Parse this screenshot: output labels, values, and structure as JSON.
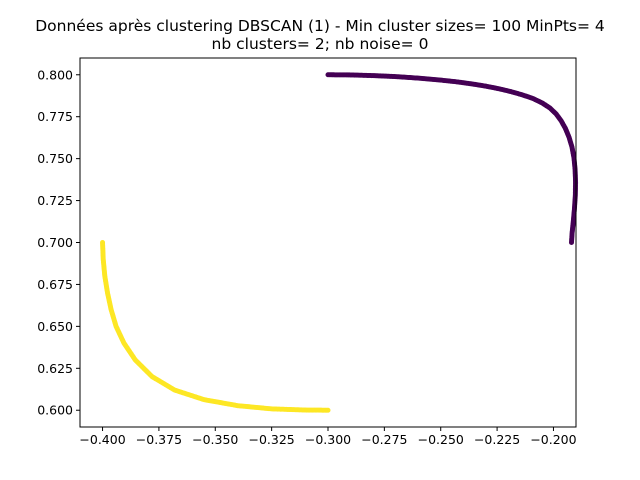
{
  "chart_data": {
    "type": "scatter",
    "title": "Données après clustering DBSCAN (1) - Min cluster sizes= 100 MinPts= 4",
    "subtitle": "nb clusters= 2; nb noise= 0",
    "xlabel": "",
    "ylabel": "",
    "xlim": [
      -0.41,
      -0.19
    ],
    "ylim": [
      0.59,
      0.81
    ],
    "x_ticks": [
      -0.4,
      -0.375,
      -0.35,
      -0.325,
      -0.3,
      -0.275,
      -0.25,
      -0.225,
      -0.2
    ],
    "x_tick_labels": [
      "−0.400",
      "−0.375",
      "−0.350",
      "−0.325",
      "−0.300",
      "−0.275",
      "−0.250",
      "−0.225",
      "−0.200"
    ],
    "y_ticks": [
      0.6,
      0.625,
      0.65,
      0.675,
      0.7,
      0.725,
      0.75,
      0.775,
      0.8
    ],
    "y_tick_labels": [
      "0.600",
      "0.625",
      "0.650",
      "0.675",
      "0.700",
      "0.725",
      "0.750",
      "0.775",
      "0.800"
    ],
    "grid": false,
    "legend": false,
    "series": [
      {
        "cluster": 0,
        "color": "#440154",
        "points": [
          [
            -0.3,
            0.8
          ],
          [
            -0.29,
            0.7999
          ],
          [
            -0.28,
            0.7995
          ],
          [
            -0.27,
            0.7989
          ],
          [
            -0.26,
            0.798
          ],
          [
            -0.25,
            0.7968
          ],
          [
            -0.243,
            0.7958
          ],
          [
            -0.236,
            0.7945
          ],
          [
            -0.23,
            0.7932
          ],
          [
            -0.224,
            0.7916
          ],
          [
            -0.219,
            0.79
          ],
          [
            -0.214,
            0.7881
          ],
          [
            -0.209,
            0.7858
          ],
          [
            -0.205,
            0.7832
          ],
          [
            -0.2015,
            0.7801
          ],
          [
            -0.1988,
            0.7766
          ],
          [
            -0.1966,
            0.7726
          ],
          [
            -0.1947,
            0.768
          ],
          [
            -0.1931,
            0.7628
          ],
          [
            -0.1918,
            0.757
          ],
          [
            -0.1909,
            0.7505
          ],
          [
            -0.1904,
            0.7435
          ],
          [
            -0.1902,
            0.736
          ],
          [
            -0.1903,
            0.728
          ],
          [
            -0.1907,
            0.72
          ],
          [
            -0.1912,
            0.7125
          ],
          [
            -0.1917,
            0.706
          ],
          [
            -0.192,
            0.7
          ]
        ]
      },
      {
        "cluster": 1,
        "color": "#fde725",
        "points": [
          [
            -0.4,
            0.7
          ],
          [
            -0.3997,
            0.69
          ],
          [
            -0.399,
            0.68
          ],
          [
            -0.3978,
            0.67
          ],
          [
            -0.3962,
            0.66
          ],
          [
            -0.394,
            0.65
          ],
          [
            -0.3905,
            0.64
          ],
          [
            -0.3855,
            0.63
          ],
          [
            -0.378,
            0.62
          ],
          [
            -0.368,
            0.612
          ],
          [
            -0.355,
            0.6063
          ],
          [
            -0.34,
            0.6027
          ],
          [
            -0.325,
            0.6008
          ],
          [
            -0.31,
            0.6001
          ],
          [
            -0.3,
            0.6
          ]
        ]
      }
    ]
  }
}
